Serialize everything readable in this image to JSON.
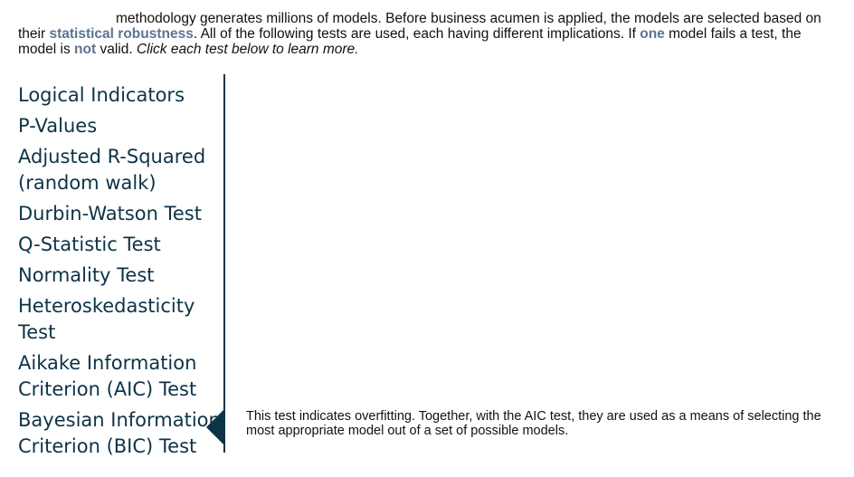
{
  "intro": {
    "line1": "methodology generates millions of models. Before business acumen is applied, the models are selected based on",
    "line2_a": "their ",
    "line2_hl": "statistical robustness",
    "line2_b": ". All of the following tests are used, each having different implications. If ",
    "line2_hl2": "one",
    "line2_c": " model fails a test, the",
    "line3_a": "model is ",
    "line3_hl": "not",
    "line3_b": " valid. ",
    "line3_it": "Click each test below to learn more."
  },
  "tests": {
    "items": [
      {
        "label": "Logical Indicators"
      },
      {
        "label": "P-Values"
      },
      {
        "label": "Adjusted R-Squared",
        "label2": "(random walk)"
      },
      {
        "label": "Durbin-Watson Test"
      },
      {
        "label": "Q-Statistic Test"
      },
      {
        "label": "Normality Test"
      },
      {
        "label": "Heteroskedasticity",
        "label2": "Test"
      },
      {
        "label": "Aikake Information",
        "label2": "Criterion (AIC) Test"
      },
      {
        "label": "Bayesian Information",
        "label2": "Criterion (BIC) Test"
      }
    ],
    "selected": "Bayesian Information Criterion (BIC) Test"
  },
  "detail": {
    "text": "This test indicates overfitting. Together, with the AIC test, they are used as a means of selecting the most appropriate model out of a set of possible models."
  },
  "colors": {
    "accent": "#0d3347",
    "highlight": "#5a7591"
  }
}
